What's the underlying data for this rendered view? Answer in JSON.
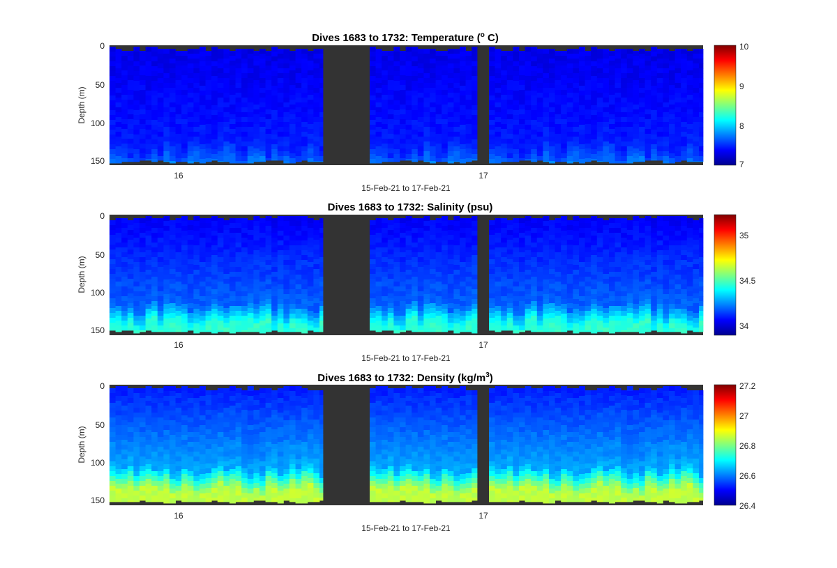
{
  "figure": {
    "background": "#ffffff",
    "no_data_color": "#333333"
  },
  "chart_data": [
    {
      "type": "heatmap",
      "id": "temperature",
      "title_main": "Dives 1683 to 1732: Temperature (",
      "title_sup": "o",
      "title_end": " C)",
      "xlabel": "15-Feb-21 to 17-Feb-21",
      "ylabel": "Depth (m)",
      "ylim": [
        0,
        155
      ],
      "yticks": [
        "0",
        "50",
        "100",
        "150"
      ],
      "xticks": [
        "16",
        "17"
      ],
      "colorbar": {
        "range": [
          7,
          10
        ],
        "ticks": [
          "7",
          "8",
          "9",
          "10"
        ],
        "colormap": "jet"
      },
      "surface_value": 7.3,
      "deep_value": 7.75,
      "thermocline_depth": 130
    },
    {
      "type": "heatmap",
      "id": "salinity",
      "title_main": "Dives 1683 to 1732: Salinity (psu)",
      "title_sup": "",
      "title_end": "",
      "xlabel": "15-Feb-21 to 17-Feb-21",
      "ylabel": "Depth (m)",
      "ylim": [
        0,
        155
      ],
      "yticks": [
        "0",
        "50",
        "100",
        "150"
      ],
      "xticks": [
        "16",
        "17"
      ],
      "colorbar": {
        "range": [
          33.9,
          35.2
        ],
        "ticks": [
          "34",
          "34.5",
          "35"
        ],
        "colormap": "jet"
      },
      "surface_value": 34.05,
      "deep_value": 34.45,
      "thermocline_depth": 115
    },
    {
      "type": "heatmap",
      "id": "density",
      "title_main": "Dives 1683 to 1732: Density (kg/m",
      "title_sup": "3",
      "title_end": ")",
      "xlabel": "15-Feb-21 to 17-Feb-21",
      "ylabel": "Depth (m)",
      "ylim": [
        0,
        155
      ],
      "yticks": [
        "0",
        "50",
        "100",
        "150"
      ],
      "xticks": [
        "16",
        "17"
      ],
      "colorbar": {
        "range": [
          26.4,
          27.2
        ],
        "ticks": [
          "26.4",
          "26.6",
          "26.8",
          "27",
          "27.2"
        ],
        "colormap": "jet"
      },
      "surface_value": 26.52,
      "deep_value": 26.85,
      "thermocline_depth": 110
    }
  ]
}
